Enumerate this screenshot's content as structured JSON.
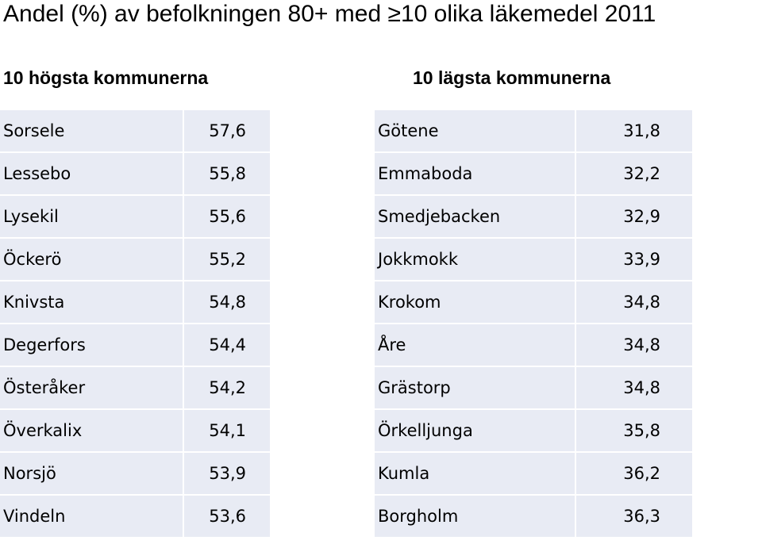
{
  "title": {
    "prefix": "Andel  (%) av befolkningen 80+ med ",
    "symbol": "≥",
    "suffix": "10 olika läkemedel 2011"
  },
  "highest": {
    "heading": "10 högsta kommunerna",
    "rows": [
      {
        "name": "Sorsele",
        "value": "57,6"
      },
      {
        "name": "Lessebo",
        "value": "55,8"
      },
      {
        "name": "Lysekil",
        "value": "55,6"
      },
      {
        "name": "Öckerö",
        "value": "55,2"
      },
      {
        "name": "Knivsta",
        "value": "54,8"
      },
      {
        "name": "Degerfors",
        "value": "54,4"
      },
      {
        "name": "Österåker",
        "value": "54,2"
      },
      {
        "name": "Överkalix",
        "value": "54,1"
      },
      {
        "name": "Norsjö",
        "value": "53,9"
      },
      {
        "name": "Vindeln",
        "value": "53,6"
      }
    ]
  },
  "lowest": {
    "heading": "10 lägsta kommunerna",
    "rows": [
      {
        "name": "Götene",
        "value": "31,8"
      },
      {
        "name": "Emmaboda",
        "value": "32,2"
      },
      {
        "name": "Smedjebacken",
        "value": "32,9"
      },
      {
        "name": "Jokkmokk",
        "value": "33,9"
      },
      {
        "name": "Krokom",
        "value": "34,8"
      },
      {
        "name": "Åre",
        "value": "34,8"
      },
      {
        "name": "Grästorp",
        "value": "34,8"
      },
      {
        "name": "Örkelljunga",
        "value": "35,8"
      },
      {
        "name": "Kumla",
        "value": "36,2"
      },
      {
        "name": "Borgholm",
        "value": "36,3"
      }
    ]
  },
  "colors": {
    "cell_background": "#e8ebf4"
  }
}
